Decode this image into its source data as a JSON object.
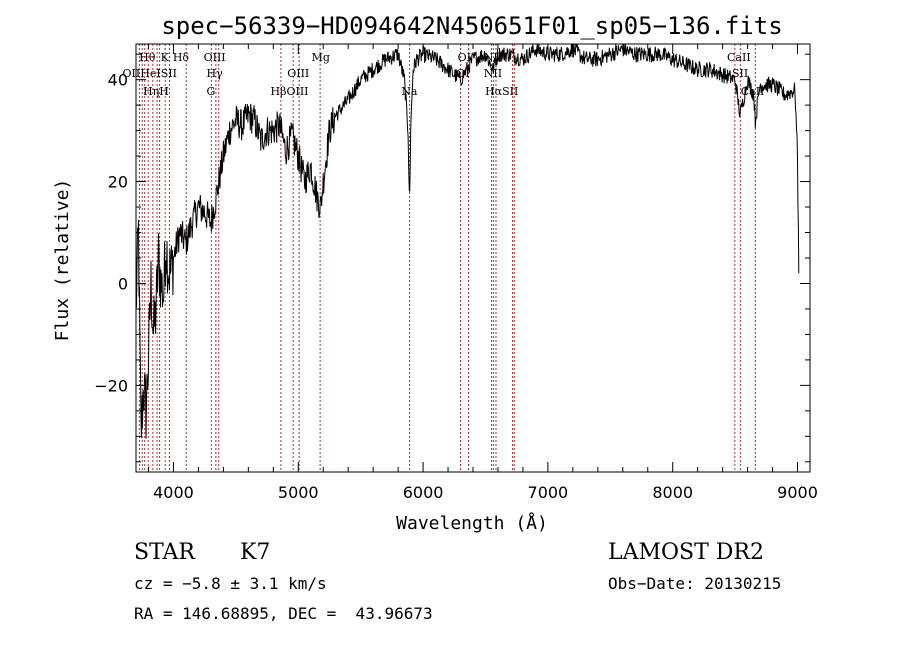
{
  "chart_data": {
    "type": "line",
    "title": "spec−56339−HD094642N450651F01_sp05−136.fits",
    "xlabel": "Wavelength (Å)",
    "ylabel": "Flux (relative)",
    "xlim": [
      3700,
      9100
    ],
    "ylim": [
      -37,
      47
    ],
    "x_ticks": [
      4000,
      5000,
      6000,
      7000,
      8000,
      9000
    ],
    "y_ticks": [
      -20,
      0,
      20,
      40
    ],
    "grid": false,
    "colors": {
      "spectrum": "#000000",
      "line_markers": "#b03030",
      "frame": "#000000"
    },
    "series": [
      {
        "x": [
          3700,
          3720,
          3740,
          3760,
          3780,
          3800,
          3820,
          3840,
          3860,
          3880,
          3900,
          3920,
          3940,
          3960,
          3980,
          4000,
          4050,
          4100,
          4150,
          4200,
          4250,
          4300,
          4350,
          4400,
          4450,
          4500,
          4550,
          4600,
          4650,
          4700,
          4750,
          4800,
          4850,
          4900,
          4950,
          5000,
          5050,
          5100,
          5150,
          5180,
          5200,
          5250,
          5300,
          5400,
          5500,
          5600,
          5700,
          5800,
          5850,
          5880,
          5890,
          5895,
          5900,
          5920,
          5950,
          6000,
          6100,
          6200,
          6300,
          6400,
          6500,
          6560,
          6600,
          6700,
          6800,
          6900,
          7000,
          7100,
          7200,
          7300,
          7400,
          7500,
          7600,
          7700,
          7800,
          7900,
          8000,
          8100,
          8200,
          8300,
          8400,
          8500,
          8540,
          8600,
          8650,
          8662,
          8700,
          8800,
          8900,
          8980,
          9000,
          9010
        ],
        "y": [
          -5,
          10,
          -30,
          -20,
          -25,
          -15,
          0,
          -10,
          -5,
          5,
          0,
          -2,
          8,
          3,
          2,
          5,
          10,
          8,
          12,
          15,
          14,
          12,
          18,
          25,
          30,
          32,
          31,
          33,
          32,
          28,
          30,
          30,
          31,
          26,
          29,
          25,
          20,
          23,
          17,
          15,
          20,
          30,
          33,
          36,
          40,
          42,
          44,
          45,
          40,
          30,
          17,
          20,
          30,
          42,
          44,
          45,
          44,
          42,
          40,
          44,
          45,
          42,
          45,
          45,
          44,
          46,
          45,
          45,
          46,
          44,
          44,
          45,
          46,
          45,
          45,
          45,
          44,
          43,
          42,
          42,
          41,
          40,
          33,
          40,
          37,
          32,
          39,
          39,
          37,
          38,
          25,
          2
        ]
      }
    ],
    "lines": [
      {
        "w": 3727,
        "row1": "OII",
        "row2": ""
      },
      {
        "w": 3750,
        "row1": "",
        "row2": ""
      },
      {
        "w": 3770,
        "row1": "Hθ",
        "row2": ""
      },
      {
        "w": 3798,
        "row1": "",
        "row2": ""
      },
      {
        "w": 3835,
        "row1": "",
        "row2": ""
      },
      {
        "w": 3869,
        "row1": "",
        "row2": ""
      },
      {
        "w": 3889,
        "row1": "HeI",
        "row2": ""
      },
      {
        "w": 3934,
        "row1": "K",
        "row2": "Hη"
      },
      {
        "w": 3968,
        "row1": "SII",
        "row2": "H"
      },
      {
        "w": 4102,
        "row1": "Hδ",
        "row2": ""
      },
      {
        "w": 4304,
        "row1": "G",
        "row2": ""
      },
      {
        "w": 4340,
        "row1": "Hγ",
        "row2": ""
      },
      {
        "w": 4363,
        "row1": "OIII",
        "row2": ""
      },
      {
        "w": 4861,
        "row1": "Hβ",
        "row2": ""
      },
      {
        "w": 4959,
        "row1": "OIII",
        "row2": ""
      },
      {
        "w": 5007,
        "row1": "OIII",
        "row2": ""
      },
      {
        "w": 5175,
        "row1": "Mg",
        "row2": ""
      },
      {
        "w": 5892,
        "row1": "Na",
        "row2": ""
      },
      {
        "w": 6300,
        "row1": "OI",
        "row2": ""
      },
      {
        "w": 6364,
        "row1": "OI",
        "row2": ""
      },
      {
        "w": 6548,
        "row1": "NII",
        "row2": ""
      },
      {
        "w": 6563,
        "row1": "Hα",
        "row2": ""
      },
      {
        "w": 6584,
        "row1": "NII",
        "row2": ""
      },
      {
        "w": 6717,
        "row1": "SII",
        "row2": ""
      },
      {
        "w": 6731,
        "row1": "SII",
        "row2": ""
      },
      {
        "w": 8498,
        "row1": "CaII",
        "row2": ""
      },
      {
        "w": 8542,
        "row1": "CaII",
        "row2": ""
      },
      {
        "w": 8662,
        "row1": "CaII",
        "row2": ""
      }
    ],
    "line_labels": [
      {
        "text": "Hθ",
        "w": 3790,
        "row": 1
      },
      {
        "text": "K",
        "w": 3930,
        "row": 1
      },
      {
        "text": "Hδ",
        "w": 4060,
        "row": 1
      },
      {
        "text": "OIII",
        "w": 4330,
        "row": 1
      },
      {
        "text": "Mg",
        "w": 5180,
        "row": 1
      },
      {
        "text": "OI",
        "w": 6330,
        "row": 1
      },
      {
        "text": "NII",
        "w": 6560,
        "row": 1
      },
      {
        "text": "CaII",
        "w": 8530,
        "row": 1
      },
      {
        "text": "OIIHeISII",
        "w": 3810,
        "row": 2
      },
      {
        "text": "Hγ",
        "w": 4330,
        "row": 2
      },
      {
        "text": "OIII",
        "w": 5000,
        "row": 2
      },
      {
        "text": "OI",
        "w": 6320,
        "row": 2
      },
      {
        "text": "NII",
        "w": 6560,
        "row": 2
      },
      {
        "text": "SII",
        "w": 8540,
        "row": 2
      },
      {
        "text": "HηH",
        "w": 3860,
        "row": 3
      },
      {
        "text": "G",
        "w": 4300,
        "row": 3
      },
      {
        "text": "HβOIII",
        "w": 4930,
        "row": 3
      },
      {
        "text": "Na",
        "w": 5890,
        "row": 3
      },
      {
        "text": "HαSII",
        "w": 6630,
        "row": 3
      },
      {
        "text": "CaII",
        "w": 8640,
        "row": 3
      }
    ]
  },
  "info": {
    "object_class": "STAR",
    "subclass": "K7",
    "survey": "LAMOST DR2",
    "cz": "cz = −5.8 ± 3.1 km/s",
    "obs_date": "Obs−Date: 20130215",
    "radec": "RA = 146.68895, DEC =  43.96673"
  }
}
